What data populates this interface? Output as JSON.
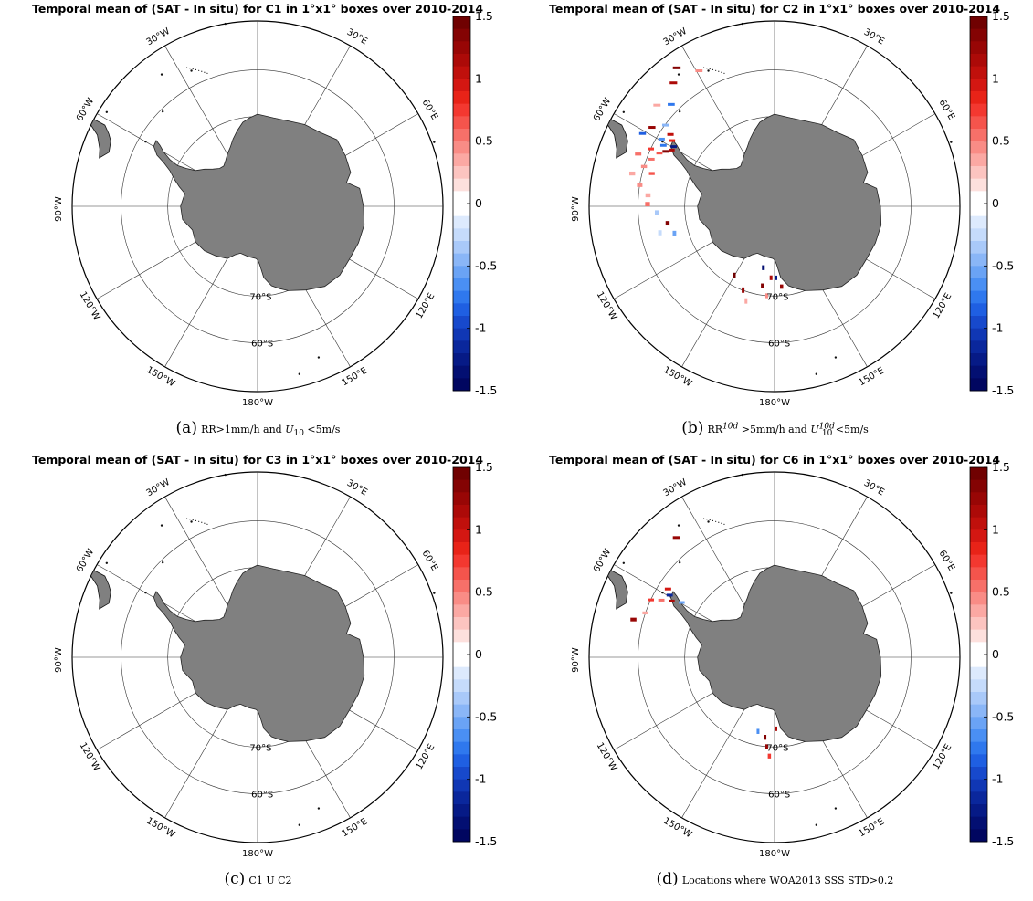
{
  "colors": {
    "land": "#808080",
    "positive": [
      "#ffffff",
      "#fde0dd",
      "#fcc4c0",
      "#fba8a3",
      "#f98c86",
      "#f77069",
      "#f5544c",
      "#f33830",
      "#e82318",
      "#d41712",
      "#c0100c",
      "#ac0a08",
      "#980605",
      "#840303",
      "#700101"
    ],
    "negative": [
      "#ffffff",
      "#ddeafd",
      "#c5dbfb",
      "#a9c9f9",
      "#8ab6f7",
      "#6aa3f5",
      "#4a8ff3",
      "#2f78ee",
      "#1f5fe2",
      "#1749cc",
      "#1037b4",
      "#0a279c",
      "#061a86",
      "#030f72",
      "#010660"
    ]
  },
  "map": {
    "longitude_labels": [
      "30°W",
      "30°E",
      "60°E",
      "60°W",
      "90°W",
      "90°E",
      "120°W",
      "120°E",
      "150°W",
      "150°E",
      "180°W"
    ],
    "latitude_labels": [
      "70°S",
      "60°S"
    ]
  },
  "panels": [
    {
      "title": "Temporal mean of (SAT - In situ) for C1 in 1°x1° boxes over 2010-2014",
      "caption_tag": "(a)",
      "caption_text": "RR>1mm/h and U10 <5m/s"
    },
    {
      "title": "Temporal mean of (SAT - In situ) for C2 in 1°x1° boxes over 2010-2014",
      "caption_tag": "(b)",
      "caption_text": "RR10d >5mm/h and U10d10 <5m/s"
    },
    {
      "title": "Temporal mean of (SAT - In situ) for C3 in 1°x1° boxes over 2010-2014",
      "caption_tag": "(c)",
      "caption_text": "C1 U C2"
    },
    {
      "title": "Temporal mean of (SAT - In situ) for C6 in 1°x1° boxes over 2010-2014",
      "caption_tag": "(d)",
      "caption_text": "Locations where WOA2013 SSS STD>0.2"
    }
  ],
  "chart_data": [
    {
      "type": "heatmap",
      "projection": "south-polar-stereographic",
      "title": "Temporal mean of (SAT - In situ) for C1 in 1°x1° boxes over 2010-2014",
      "colorbar": {
        "min": -1.5,
        "max": 1.5,
        "ticks": [
          1.5,
          1,
          0.5,
          0,
          -0.5,
          -1,
          -1.5
        ]
      },
      "cells": []
    },
    {
      "type": "heatmap",
      "projection": "south-polar-stereographic",
      "title": "Temporal mean of (SAT - In situ) for C2 in 1°x1° boxes over 2010-2014",
      "colorbar": {
        "min": -1.5,
        "max": 1.5,
        "ticks": [
          1.5,
          1,
          0.5,
          0,
          -0.5,
          -1,
          -1.5
        ]
      },
      "cells": [
        {
          "lon": -62,
          "lat": -64,
          "value": 1.2
        },
        {
          "lon": -60,
          "lat": -64,
          "value": -1.3
        },
        {
          "lon": -64,
          "lat": -63,
          "value": 1.4
        },
        {
          "lon": -58,
          "lat": -63,
          "value": 0.9
        },
        {
          "lon": -66,
          "lat": -62,
          "value": 0.6
        },
        {
          "lon": -62,
          "lat": -62,
          "value": -0.8
        },
        {
          "lon": -70,
          "lat": -61,
          "value": 0.5
        },
        {
          "lon": -56,
          "lat": -62,
          "value": 1.1
        },
        {
          "lon": -74,
          "lat": -60,
          "value": 0.4
        },
        {
          "lon": -60,
          "lat": -61,
          "value": -0.6
        },
        {
          "lon": -66,
          "lat": -60,
          "value": 0.8
        },
        {
          "lon": -54,
          "lat": -60,
          "value": -0.4
        },
        {
          "lon": -78,
          "lat": -58,
          "value": 0.3
        },
        {
          "lon": -70,
          "lat": -58,
          "value": 0.5
        },
        {
          "lon": -62,
          "lat": -57,
          "value": -0.9
        },
        {
          "lon": -58,
          "lat": -58,
          "value": 1.3
        },
        {
          "lon": -82,
          "lat": -60,
          "value": 0.4
        },
        {
          "lon": -76,
          "lat": -62,
          "value": 0.6
        },
        {
          "lon": -86,
          "lat": -62,
          "value": 0.3
        },
        {
          "lon": -90,
          "lat": -62,
          "value": 0.5
        },
        {
          "lon": -94,
          "lat": -64,
          "value": -0.3
        },
        {
          "lon": -100,
          "lat": -66,
          "value": 1.4
        },
        {
          "lon": -106,
          "lat": -67,
          "value": -0.5
        },
        {
          "lon": -104,
          "lat": -64,
          "value": -0.2
        },
        {
          "lon": -50,
          "lat": -56,
          "value": 0.3
        },
        {
          "lon": -40,
          "lat": -55,
          "value": 1.2
        },
        {
          "lon": -36,
          "lat": -53,
          "value": 1.4
        },
        {
          "lon": -30,
          "lat": -56,
          "value": 0.4
        },
        {
          "lon": -46,
          "lat": -58,
          "value": -0.7
        },
        {
          "lon": -150,
          "lat": -72,
          "value": 1.5
        },
        {
          "lon": -160,
          "lat": -70,
          "value": 1.3
        },
        {
          "lon": -170,
          "lat": -76,
          "value": -1.4
        },
        {
          "lon": -178,
          "lat": -74,
          "value": 1.2
        },
        {
          "lon": -172,
          "lat": -72,
          "value": 1.4
        },
        {
          "lon": 178,
          "lat": -74,
          "value": -1.3
        },
        {
          "lon": -176,
          "lat": -70,
          "value": 0.4
        },
        {
          "lon": 174,
          "lat": -72,
          "value": 1.3
        },
        {
          "lon": -164,
          "lat": -68,
          "value": 0.3
        }
      ]
    },
    {
      "type": "heatmap",
      "projection": "south-polar-stereographic",
      "title": "Temporal mean of (SAT - In situ) for C3 in 1°x1° boxes over 2010-2014",
      "colorbar": {
        "min": -1.5,
        "max": 1.5,
        "ticks": [
          1.5,
          1,
          0.5,
          0,
          -0.5,
          -1,
          -1.5
        ]
      },
      "cells": []
    },
    {
      "type": "heatmap",
      "projection": "south-polar-stereographic",
      "title": "Temporal mean of (SAT - In situ) for C6 in 1°x1° boxes over 2010-2014",
      "colorbar": {
        "min": -1.5,
        "max": 1.5,
        "ticks": [
          1.5,
          1,
          0.5,
          0,
          -0.5,
          -1,
          -1.5
        ]
      },
      "cells": [
        {
          "lon": -62,
          "lat": -64,
          "value": 1.2
        },
        {
          "lon": -60,
          "lat": -63,
          "value": -1.2
        },
        {
          "lon": -64,
          "lat": -62,
          "value": 0.5
        },
        {
          "lon": -66,
          "lat": -60,
          "value": 0.7
        },
        {
          "lon": -72,
          "lat": -60,
          "value": 0.3
        },
        {
          "lon": -58,
          "lat": -62,
          "value": 1.0
        },
        {
          "lon": -76,
          "lat": -58,
          "value": 1.3
        },
        {
          "lon": -40,
          "lat": -56,
          "value": 1.3
        },
        {
          "lon": -60,
          "lat": -66,
          "value": -0.5
        },
        {
          "lon": -174,
          "lat": -72,
          "value": 1.4
        },
        {
          "lon": -176,
          "lat": -70,
          "value": 1.3
        },
        {
          "lon": 178,
          "lat": -74,
          "value": 1.2
        },
        {
          "lon": -168,
          "lat": -73,
          "value": -0.6
        },
        {
          "lon": -178,
          "lat": -68,
          "value": 0.8
        }
      ]
    }
  ]
}
